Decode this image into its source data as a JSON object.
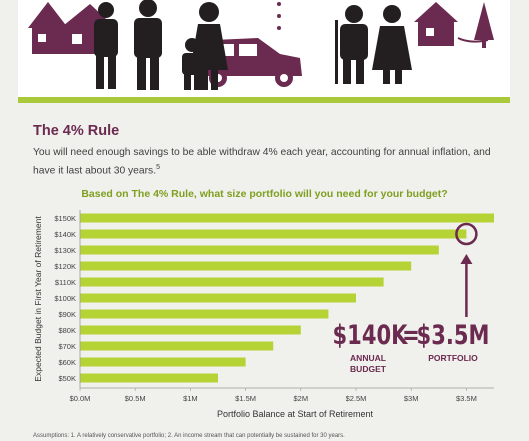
{
  "section_title": "The 4% Rule",
  "intro": {
    "text": "You will need enough savings to be able withdraw 4% each year, accounting for annual inflation, and have it last about 30 years.",
    "sup": "5"
  },
  "footnote": "Assumptions: 1. A relatively conservative portfolio; 2. An income stream that can potentially be sustained for 30 years.",
  "highlight": {
    "amount_left": "$140K",
    "equals": "=",
    "amount_right": "$3.5M",
    "label_left": "ANNUAL\nBUDGET",
    "label_right": "PORTFOLIO"
  },
  "colors": {
    "bar": "#b5d335",
    "accent": "#6b2a4f",
    "title_green": "#7e9f1f",
    "banner_green": "#a9c83a",
    "figure": "#231f20"
  },
  "chart_data": {
    "type": "bar",
    "orientation": "horizontal",
    "title": "Based on The 4% Rule, what size portfolio will you need for your budget?",
    "xlabel": "Portfolio Balance at Start of Retirement",
    "ylabel": "Expected Budget in First Year of Retirement",
    "categories": [
      "$150K",
      "$140K",
      "$130K",
      "$120K",
      "$110K",
      "$100K",
      "$90K",
      "$80K",
      "$70K",
      "$60K",
      "$50K"
    ],
    "values": [
      3.75,
      3.5,
      3.25,
      3.0,
      2.75,
      2.5,
      2.25,
      2.0,
      1.75,
      1.5,
      1.25
    ],
    "xlim": [
      0,
      3.75
    ],
    "xticks": [
      {
        "value": 0,
        "label": "$0.0M"
      },
      {
        "value": 0.5,
        "label": "$0.5M"
      },
      {
        "value": 1,
        "label": "$1M"
      },
      {
        "value": 1.5,
        "label": "$1.5M"
      },
      {
        "value": 2,
        "label": "$2M"
      },
      {
        "value": 2.5,
        "label": "$2.5M"
      },
      {
        "value": 3,
        "label": "$3M"
      },
      {
        "value": 3.5,
        "label": "$3.5M"
      }
    ],
    "highlighted_category": "$140K",
    "grid": false,
    "legend": "none"
  }
}
